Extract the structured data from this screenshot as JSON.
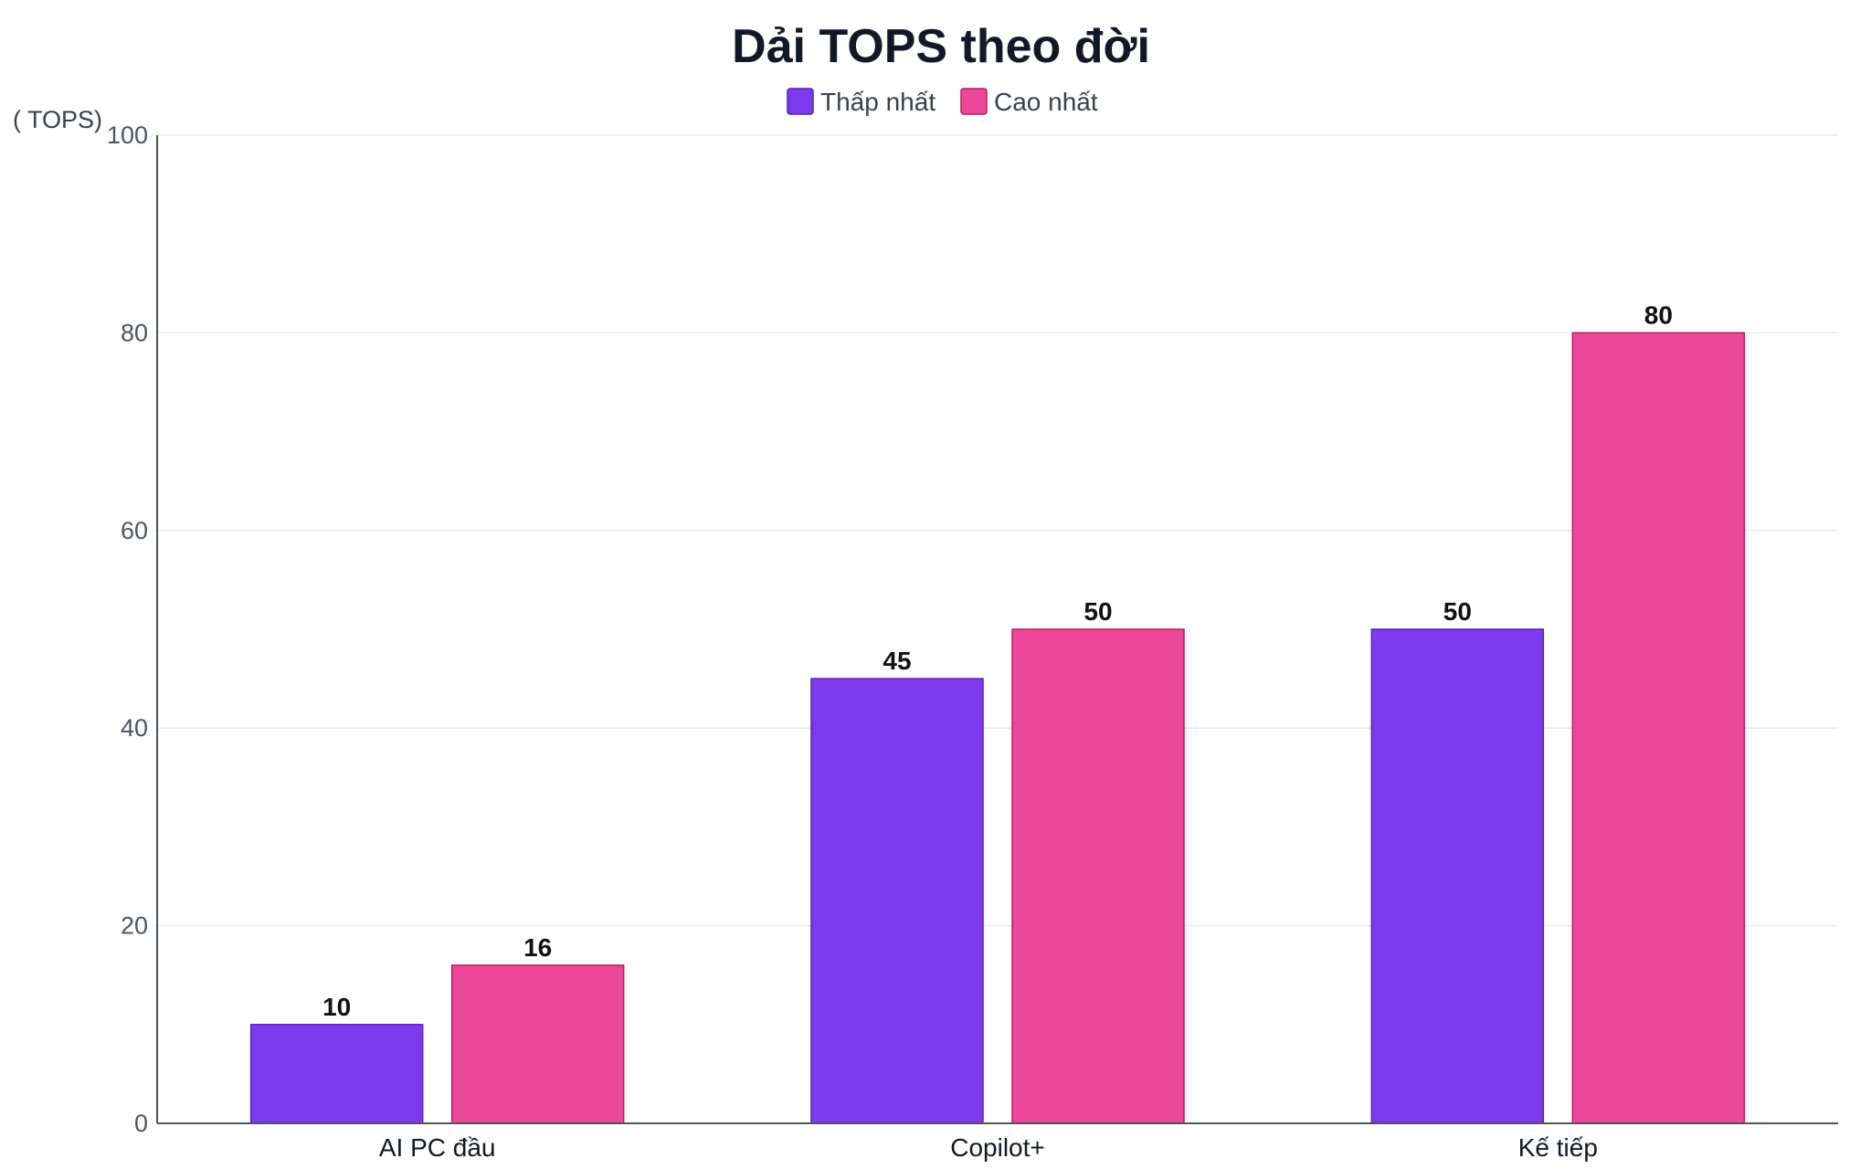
{
  "chart_data": {
    "type": "bar",
    "title": "Dải TOPS theo đời",
    "ylabel": "( TOPS)",
    "xlabel": "",
    "categories": [
      "AI PC đầu",
      "Copilot+",
      "Kế tiếp"
    ],
    "series": [
      {
        "name": "Thấp nhất",
        "color": "#7c3aed",
        "values": [
          10,
          45,
          50
        ]
      },
      {
        "name": "Cao nhất",
        "color": "#ec4899",
        "values": [
          16,
          50,
          80
        ]
      }
    ],
    "ylim": [
      0,
      100
    ],
    "yticks": [
      0,
      20,
      40,
      60,
      80,
      100
    ],
    "grid": true,
    "legend_position": "top-center"
  }
}
